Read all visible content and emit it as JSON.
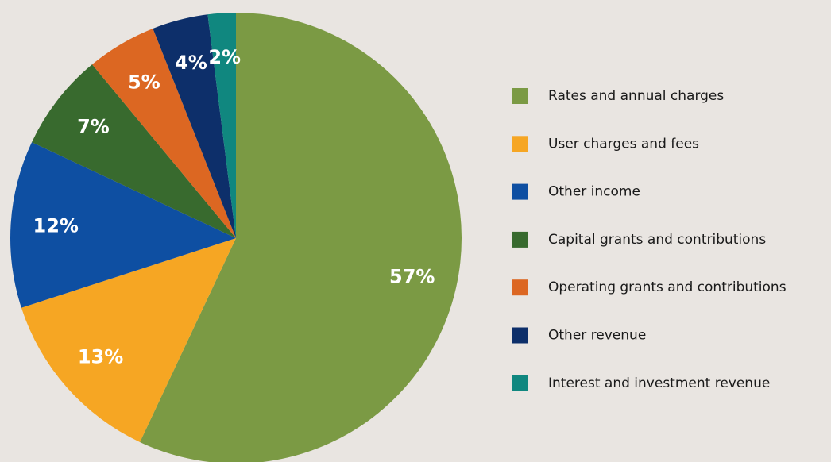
{
  "chart_data": {
    "type": "pie",
    "categories": [
      "Rates and annual charges",
      "User charges and fees",
      "Other income",
      "Capital grants and contributions",
      "Operating grants and contributions",
      "Other revenue",
      "Interest and investment revenue"
    ],
    "values": [
      57,
      13,
      12,
      7,
      5,
      4,
      2
    ],
    "value_labels": [
      "57%",
      "13%",
      "12%",
      "7%",
      "5%",
      "4%",
      "2%"
    ],
    "colors": [
      "#7b9a44",
      "#f6a623",
      "#0e4fa2",
      "#386a2e",
      "#dc6722",
      "#0d2f6a",
      "#10877f"
    ],
    "legend": "right"
  }
}
